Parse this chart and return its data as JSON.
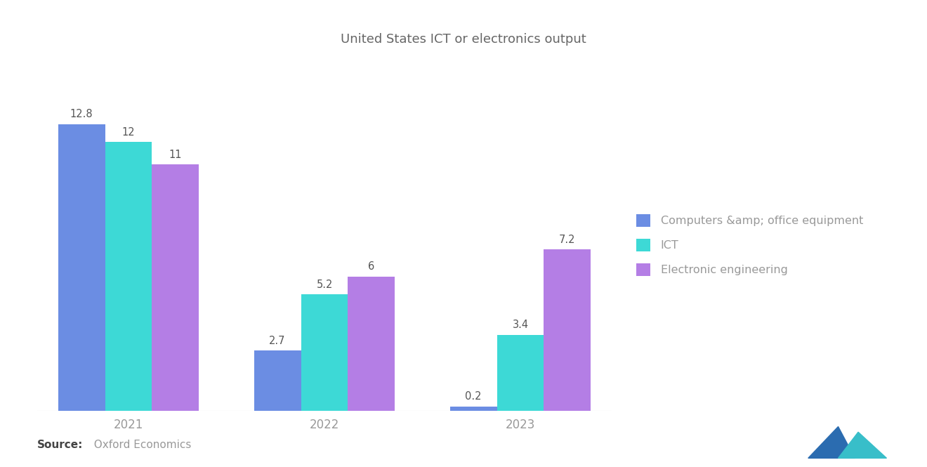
{
  "title": "United States ICT or electronics output",
  "title_fontsize": 13,
  "title_color": "#666666",
  "background_color": "#ffffff",
  "years": [
    "2021",
    "2022",
    "2023"
  ],
  "series": [
    {
      "name": "Computers &amp; office equipment",
      "values": [
        12.8,
        2.7,
        0.2
      ],
      "color": "#6B8DE3"
    },
    {
      "name": "ICT",
      "values": [
        12.0,
        5.2,
        3.4
      ],
      "color": "#3DD9D6"
    },
    {
      "name": "Electronic engineering",
      "values": [
        11.0,
        6.0,
        7.2
      ],
      "color": "#B47EE5"
    }
  ],
  "ylim": [
    0,
    15
  ],
  "bar_width": 0.18,
  "group_positions": [
    0.35,
    1.1,
    1.85
  ],
  "source_bold": "Source:",
  "source_rest": "  Oxford Economics",
  "legend_text_color": "#999999",
  "axis_label_color": "#999999",
  "value_label_color": "#555555",
  "value_fontsize": 10.5,
  "logo_color1": "#2B6CB0",
  "logo_color2": "#38BEC9"
}
